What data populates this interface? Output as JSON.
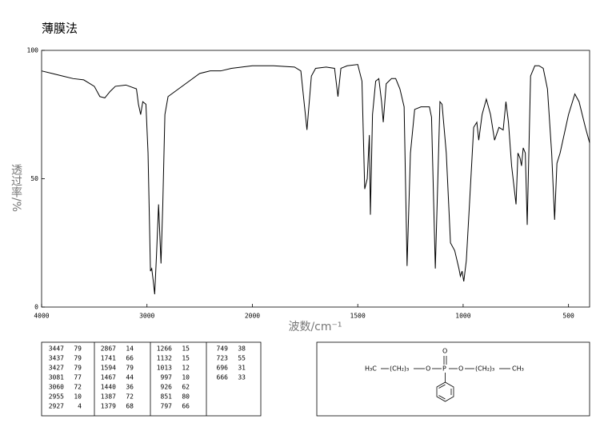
{
  "chart_data": {
    "type": "line",
    "title": "薄膜法",
    "x_label": "波数/cm⁻¹",
    "y_label": "透过率/%",
    "color": "#000000",
    "x": [
      4000,
      3900,
      3800,
      3700,
      3600,
      3500,
      3447,
      3400,
      3350,
      3300,
      3200,
      3100,
      3081,
      3060,
      3040,
      3010,
      2990,
      2967,
      2955,
      2940,
      2927,
      2910,
      2890,
      2880,
      2867,
      2850,
      2830,
      2800,
      2700,
      2600,
      2500,
      2400,
      2300,
      2200,
      2100,
      2000,
      1900,
      1800,
      1770,
      1741,
      1720,
      1700,
      1650,
      1610,
      1594,
      1580,
      1550,
      1500,
      1480,
      1467,
      1455,
      1445,
      1440,
      1430,
      1415,
      1400,
      1387,
      1379,
      1365,
      1340,
      1320,
      1300,
      1280,
      1266,
      1250,
      1230,
      1200,
      1160,
      1150,
      1132,
      1120,
      1110,
      1100,
      1080,
      1060,
      1040,
      1020,
      1013,
      1005,
      997,
      985,
      970,
      950,
      935,
      926,
      910,
      890,
      870,
      851,
      830,
      810,
      797,
      785,
      770,
      749,
      740,
      730,
      723,
      715,
      705,
      696,
      680,
      660,
      640,
      620,
      600,
      580,
      566,
      555,
      540,
      500,
      470,
      450,
      420,
      400
    ],
    "values": [
      92,
      91,
      90,
      89,
      88.5,
      86,
      82,
      81.5,
      84,
      86,
      86.5,
      85,
      79,
      75,
      80,
      79,
      60,
      14,
      15,
      10,
      5,
      20,
      40,
      30,
      17,
      40,
      75,
      82,
      85,
      88,
      91,
      92,
      92,
      93,
      93.5,
      94,
      94,
      93.5,
      92,
      69,
      90,
      93,
      93.5,
      93,
      82,
      93,
      94,
      94.5,
      88,
      46,
      50,
      67,
      36,
      75,
      88,
      89,
      80,
      72,
      87,
      89,
      89,
      85,
      78,
      16,
      60,
      77,
      78,
      78,
      74,
      15,
      50,
      80,
      79,
      60,
      25,
      22,
      15,
      12,
      14,
      10,
      18,
      40,
      70,
      72,
      65,
      75,
      81,
      75,
      65,
      70,
      69,
      80,
      72,
      55,
      40,
      60,
      58,
      55,
      62,
      60,
      32,
      90,
      94,
      94,
      93,
      85,
      60,
      34,
      56,
      60,
      75,
      83,
      80,
      70,
      64
    ],
    "xlim": [
      4000,
      400
    ],
    "ylim": [
      0,
      100
    ],
    "xticks": [
      4000,
      3000,
      2000,
      1500,
      1000,
      500
    ],
    "yticks": [
      0,
      50,
      100
    ]
  },
  "peak_table": {
    "columns": [
      [
        [
          3447,
          79
        ],
        [
          3437,
          79
        ],
        [
          3427,
          79
        ],
        [
          3081,
          77
        ],
        [
          3060,
          72
        ],
        [
          2955,
          10
        ],
        [
          2927,
          4
        ]
      ],
      [
        [
          2867,
          14
        ],
        [
          1741,
          66
        ],
        [
          1594,
          79
        ],
        [
          1467,
          44
        ],
        [
          1440,
          36
        ],
        [
          1387,
          72
        ],
        [
          1379,
          68
        ]
      ],
      [
        [
          1266,
          15
        ],
        [
          1132,
          15
        ],
        [
          1013,
          12
        ],
        [
          997,
          10
        ],
        [
          926,
          62
        ],
        [
          851,
          80
        ],
        [
          797,
          66
        ]
      ],
      [
        [
          749,
          38
        ],
        [
          723,
          55
        ],
        [
          696,
          31
        ],
        [
          666,
          33
        ]
      ]
    ]
  },
  "structure": {
    "left_group": "H₃C",
    "left_chain": "(CH₂)₃",
    "left_o": "O",
    "p": "P",
    "top_o": "O",
    "right_o": "O",
    "right_chain": "(CH₂)₃",
    "right_group": "CH₃"
  }
}
